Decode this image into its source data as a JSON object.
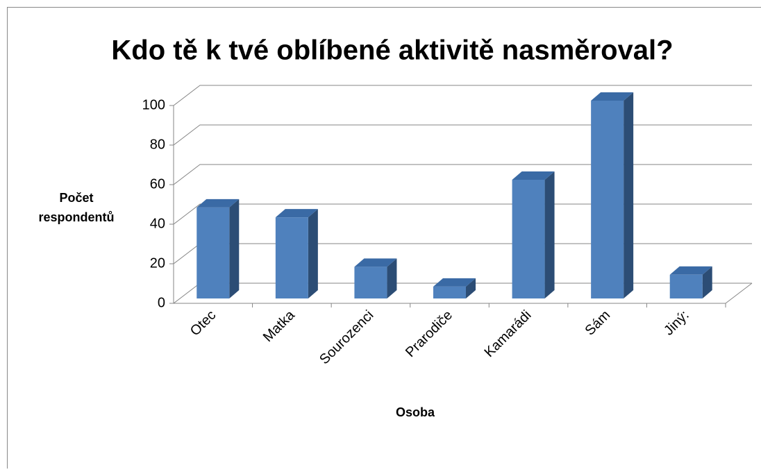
{
  "chart_data": {
    "type": "bar3d",
    "title": "Kdo tě k tvé oblíbené aktivitě nasměroval?",
    "y_label": "Počet respondentů",
    "x_label": "Osoba",
    "categories": [
      "Otec",
      "Matka",
      "Sourozenci",
      "Prarodiče",
      "Kamarádi",
      "Sám",
      "Jiný:"
    ],
    "values": [
      46,
      41,
      16,
      6,
      60,
      100,
      12
    ],
    "color": "#4f81bd",
    "ylim": [
      0,
      100
    ],
    "yticks": [
      0,
      20,
      40,
      60,
      80,
      100
    ],
    "grid": true
  }
}
